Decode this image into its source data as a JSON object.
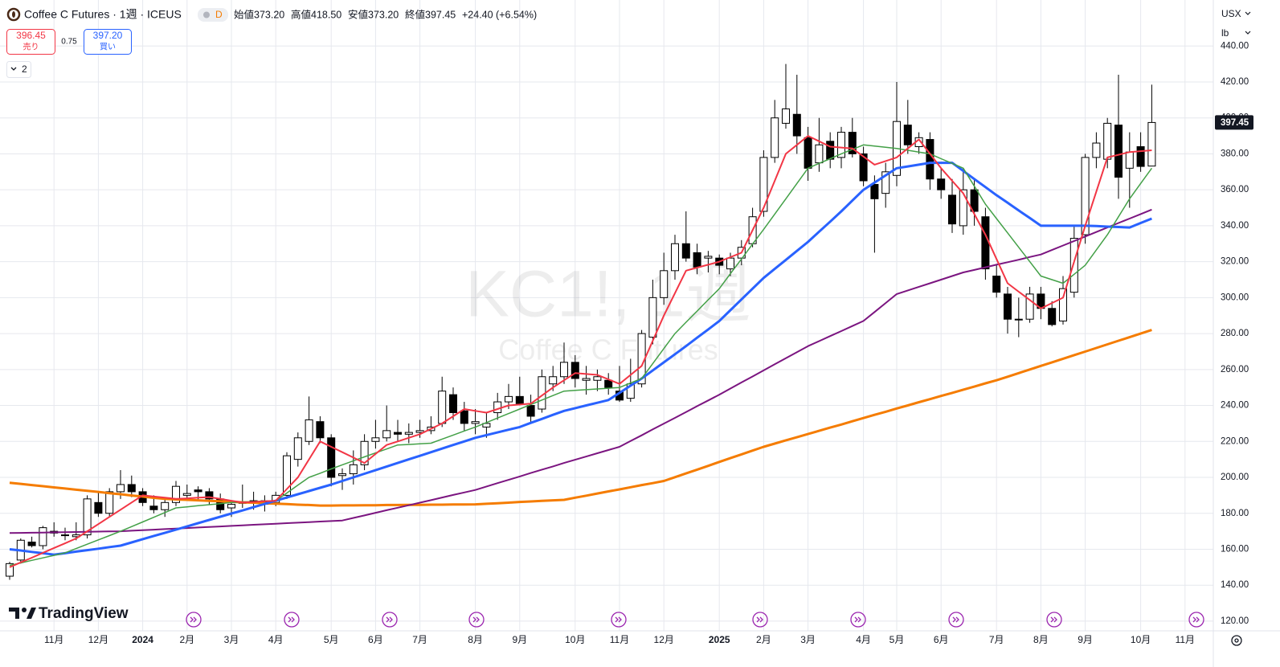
{
  "chart_data": {
    "type": "candlestick",
    "title": "Coffee C Futures · 1週 · ICEUS",
    "interval_badge": "D",
    "open_label": "始値373.20",
    "high_label": "高値418.50",
    "low_label": "安値373.20",
    "close_label": "終値397.45",
    "change_label": "+24.40 (+6.54%)",
    "currency": "USX",
    "unit": "lb",
    "watermark": "KC1!, 1週",
    "watermark_sub": "Coffee C Futures",
    "up_color": "#ffffff",
    "down_color": "#000000",
    "outline_color": "#000000",
    "grid": true,
    "ylim": [
      114.6,
      465.6
    ],
    "yticks": [
      {
        "value": 120,
        "label": "120.00"
      },
      {
        "value": 140,
        "label": "140.00"
      },
      {
        "value": 160,
        "label": "160.00"
      },
      {
        "value": 180,
        "label": "180.00"
      },
      {
        "value": 200,
        "label": "200.00"
      },
      {
        "value": 220,
        "label": "220.00"
      },
      {
        "value": 240,
        "label": "240.00"
      },
      {
        "value": 260,
        "label": "260.00"
      },
      {
        "value": 280,
        "label": "280.00"
      },
      {
        "value": 300,
        "label": "300.00"
      },
      {
        "value": 320,
        "label": "320.00"
      },
      {
        "value": 340,
        "label": "340.00"
      },
      {
        "value": 360,
        "label": "360.00"
      },
      {
        "value": 380,
        "label": "380.00"
      },
      {
        "value": 400,
        "label": "400.00"
      },
      {
        "value": 420,
        "label": "420.00"
      },
      {
        "value": 440,
        "label": "440.00"
      }
    ],
    "last_price": {
      "value": 397.45,
      "label": "397.45"
    },
    "categories": [
      null,
      null,
      null,
      null,
      "11月",
      null,
      null,
      null,
      "12月",
      null,
      null,
      null,
      "2024",
      null,
      null,
      null,
      "2月",
      null,
      null,
      null,
      "3月",
      null,
      null,
      null,
      "4月",
      null,
      null,
      null,
      null,
      "5月",
      null,
      null,
      null,
      "6月",
      null,
      null,
      null,
      "7月",
      null,
      null,
      null,
      null,
      "8月",
      null,
      null,
      null,
      "9月",
      null,
      null,
      null,
      null,
      "10月",
      null,
      null,
      null,
      "11月",
      null,
      null,
      null,
      "12月",
      null,
      null,
      null,
      null,
      "2025",
      null,
      null,
      null,
      "2月",
      null,
      null,
      null,
      "3月",
      null,
      null,
      null,
      null,
      "4月",
      null,
      null,
      "5月",
      null,
      null,
      null,
      "6月",
      null,
      null,
      null,
      null,
      "7月",
      null,
      null,
      null,
      "8月",
      null,
      null,
      null,
      "9月",
      null,
      null,
      null,
      null,
      "10月",
      null,
      null,
      null,
      "11月"
    ],
    "open": [
      145,
      154,
      164,
      162,
      170,
      168,
      167,
      168,
      186,
      180,
      192,
      196,
      192,
      184,
      182,
      186,
      190,
      193,
      192,
      188,
      183,
      186,
      186,
      187,
      186,
      190,
      210,
      220,
      231,
      222,
      201,
      202,
      207,
      220,
      222,
      225,
      224,
      225,
      226,
      230,
      246,
      237,
      230,
      228,
      236,
      242,
      245,
      240,
      238,
      252,
      256,
      264,
      254,
      254,
      254,
      248,
      244,
      252,
      278,
      300,
      315,
      330,
      325,
      322,
      322,
      316,
      322,
      330,
      348,
      378,
      397,
      402,
      389,
      375,
      387,
      378,
      392,
      380,
      363,
      358,
      368,
      396,
      384,
      388,
      366,
      357,
      340,
      360,
      345,
      312,
      302,
      288,
      288,
      302,
      294,
      287,
      303,
      335,
      378,
      377,
      396,
      372,
      384,
      373.2,
      null,
      null,
      null
    ],
    "high": [
      153,
      166,
      167,
      173,
      175,
      172,
      175,
      190,
      192,
      194,
      204,
      201,
      194,
      190,
      188,
      198,
      196,
      195,
      194,
      191,
      187,
      196,
      192,
      190,
      192,
      214,
      225,
      245,
      234,
      224,
      205,
      215,
      224,
      232,
      240,
      232,
      230,
      232,
      234,
      256,
      250,
      242,
      238,
      236,
      247,
      252,
      256,
      246,
      260,
      262,
      275,
      268,
      262,
      260,
      258,
      262,
      266,
      282,
      310,
      325,
      335,
      348,
      330,
      326,
      324,
      325,
      332,
      350,
      382,
      410,
      430,
      424,
      395,
      400,
      392,
      395,
      400,
      384,
      368,
      375,
      420,
      410,
      392,
      392,
      372,
      366,
      372,
      366,
      350,
      318,
      306,
      300,
      306,
      306,
      298,
      312,
      340,
      380,
      392,
      400,
      424,
      392,
      392,
      418.5,
      null,
      null,
      null
    ],
    "low": [
      143,
      152,
      161,
      160,
      167,
      165,
      165,
      166,
      178,
      178,
      188,
      189,
      184,
      180,
      178,
      184,
      187,
      187,
      185,
      180,
      178,
      183,
      182,
      181,
      184,
      188,
      206,
      218,
      219,
      195,
      193,
      196,
      204,
      216,
      220,
      220,
      219,
      222,
      224,
      228,
      232,
      226,
      224,
      222,
      232,
      238,
      240,
      230,
      236,
      248,
      252,
      250,
      246,
      248,
      246,
      242,
      242,
      250,
      274,
      296,
      310,
      320,
      313,
      314,
      313,
      312,
      318,
      328,
      345,
      375,
      394,
      380,
      365,
      370,
      372,
      372,
      378,
      362,
      325,
      350,
      362,
      380,
      380,
      360,
      355,
      336,
      335,
      340,
      310,
      300,
      280,
      278,
      286,
      288,
      284,
      285,
      300,
      330,
      372,
      372,
      355,
      350,
      370,
      373.2,
      null,
      null,
      null
    ],
    "close": [
      152,
      165,
      162,
      172,
      169,
      168,
      168,
      188,
      180,
      192,
      196,
      192,
      186,
      182,
      186,
      195,
      191,
      192,
      188,
      182,
      185,
      186,
      187,
      185,
      190,
      212,
      222,
      232,
      222,
      200,
      202,
      207,
      220,
      222,
      226,
      224,
      225,
      226,
      228,
      248,
      236,
      230,
      231,
      230,
      242,
      245,
      241,
      234,
      256,
      256,
      264,
      255,
      255,
      256,
      250,
      243,
      252,
      280,
      300,
      315,
      330,
      322,
      317,
      323,
      318,
      322,
      328,
      345,
      378,
      400,
      405,
      390,
      372,
      385,
      377,
      392,
      380,
      365,
      355,
      370,
      398,
      385,
      389,
      366,
      360,
      341,
      360,
      348,
      316,
      303,
      288,
      288,
      302,
      294,
      285,
      305,
      333,
      378,
      386,
      397,
      367,
      381,
      373,
      397.45,
      null,
      null,
      null
    ],
    "series": [
      {
        "color": "#f57c00",
        "width": 3,
        "values": [
          197,
          196.4,
          195.7,
          195.1,
          194.4,
          193.8,
          193.1,
          192.5,
          191.9,
          191.2,
          190.6,
          189.9,
          189.3,
          188.6,
          188,
          187.7,
          187.5,
          187.2,
          186.9,
          186.7,
          186.4,
          186.1,
          185.9,
          185.6,
          185.4,
          185.1,
          184.8,
          184.6,
          184.3,
          184.3,
          184.4,
          184.4,
          184.5,
          184.5,
          184.6,
          184.6,
          184.7,
          184.7,
          184.8,
          184.8,
          184.9,
          184.9,
          185,
          185.3,
          185.6,
          185.9,
          186.3,
          186.6,
          186.9,
          187.2,
          187.5,
          188.7,
          189.8,
          191,
          192.2,
          193.3,
          194.5,
          195.7,
          196.8,
          198,
          200.1,
          202.2,
          204.3,
          206.4,
          208.6,
          210.7,
          212.8,
          214.9,
          217,
          218.8,
          220.6,
          222.3,
          224.1,
          225.9,
          227.7,
          229.4,
          231.2,
          233,
          234.8,
          236.5,
          238.3,
          240,
          241.8,
          243.5,
          245.3,
          247,
          248.8,
          250.5,
          252.3,
          254,
          256,
          258,
          260,
          262,
          264,
          266,
          268,
          270,
          272,
          274,
          276,
          278,
          280,
          282,
          null,
          null,
          null
        ]
      },
      {
        "color": "#7b1580",
        "width": 2,
        "values": [
          169,
          169.1,
          169.2,
          169.3,
          169.4,
          169.5,
          169.6,
          169.7,
          169.8,
          169.9,
          170,
          170.3,
          170.6,
          170.9,
          171.2,
          171.5,
          171.8,
          172.1,
          172.4,
          172.7,
          173,
          173.3,
          173.6,
          173.9,
          174.2,
          174.5,
          174.8,
          175.1,
          175.4,
          175.7,
          176,
          177.4,
          178.8,
          180.3,
          181.7,
          183.1,
          184.5,
          185.9,
          187.3,
          188.8,
          190.2,
          191.6,
          193,
          194.9,
          196.8,
          198.6,
          200.5,
          202.4,
          204.3,
          206.1,
          208,
          209.8,
          211.6,
          213.4,
          215.2,
          217,
          220.2,
          223.4,
          226.7,
          229.9,
          233.1,
          236.3,
          239.6,
          242.8,
          246,
          249.4,
          252.8,
          256.1,
          259.5,
          262.9,
          266.3,
          269.6,
          273,
          275.8,
          278.6,
          281.4,
          284.2,
          287,
          292,
          297,
          302,
          304,
          306,
          308,
          310,
          312,
          314,
          315.4,
          316.9,
          318.3,
          319.7,
          321.1,
          322.6,
          324,
          326.5,
          329,
          331.5,
          334,
          336.5,
          339,
          341.5,
          344,
          346.5,
          349,
          null,
          null,
          null
        ]
      },
      {
        "color": "#2962ff",
        "width": 3,
        "values": [
          160,
          159.3,
          158.5,
          157.8,
          157,
          157.8,
          158.7,
          159.5,
          160.3,
          161.2,
          162,
          163.8,
          165.6,
          167.4,
          169.1,
          170.9,
          172.7,
          174.5,
          176.3,
          178.1,
          179.9,
          181.6,
          183.4,
          185.2,
          187,
          188.8,
          190.6,
          192.4,
          194.2,
          196,
          198,
          200,
          202,
          204,
          206,
          208,
          210,
          212,
          214,
          216,
          218,
          220,
          222,
          223.5,
          225,
          226.5,
          228,
          230.3,
          232.5,
          234.8,
          237,
          238.5,
          240,
          241.5,
          243,
          247,
          251,
          255,
          259.5,
          264,
          268.5,
          273,
          277.7,
          282.3,
          287,
          293,
          299,
          305,
          311,
          316,
          321,
          326,
          331,
          336.7,
          342.3,
          348,
          354,
          360,
          364,
          368,
          372,
          373,
          374,
          375,
          375,
          375,
          370.5,
          366,
          361.5,
          357,
          352.8,
          348.5,
          344.3,
          340,
          340,
          340,
          340,
          340,
          339.8,
          339.5,
          339.3,
          339,
          341.5,
          344,
          null,
          null,
          null
        ]
      },
      {
        "color": "#43a047",
        "width": 1.5,
        "values": [
          151,
          152.4,
          153.8,
          155.2,
          156.6,
          158,
          160.4,
          162.8,
          165.2,
          167.6,
          170,
          172.6,
          175.2,
          177.8,
          180.4,
          183,
          183.6,
          184.2,
          184.8,
          185.4,
          186,
          186.3,
          186.5,
          186.8,
          187,
          191.3,
          195.7,
          200,
          202.3,
          204.7,
          207,
          209.2,
          211.4,
          213.6,
          215.8,
          218,
          218.3,
          218.7,
          219,
          221.3,
          223.5,
          225.8,
          228,
          230.5,
          233,
          235.5,
          238,
          240.5,
          243,
          245.5,
          248,
          248.4,
          248.8,
          249.2,
          249.6,
          250,
          252.5,
          255,
          263.3,
          271.7,
          280,
          286.3,
          292.5,
          298.8,
          305,
          313.3,
          321.5,
          329.8,
          338,
          346.5,
          355,
          363.5,
          372,
          374.7,
          377.3,
          380,
          382.5,
          385,
          384.3,
          383.7,
          383,
          382,
          381,
          380,
          377.3,
          374.7,
          372,
          362,
          352,
          344,
          336,
          328,
          320,
          312,
          310,
          308,
          313,
          318,
          326.5,
          335,
          345,
          355,
          363.5,
          372,
          null,
          null,
          null
        ]
      },
      {
        "color": "#f23645",
        "width": 2,
        "values": [
          150,
          152.7,
          155.3,
          158,
          160.7,
          163.3,
          166,
          170,
          174,
          178,
          182,
          186,
          190,
          189.3,
          188.7,
          188,
          188.3,
          188.7,
          189,
          188,
          187,
          186,
          186.3,
          186.7,
          187,
          193.5,
          200,
          210,
          220,
          217,
          214,
          211,
          208,
          213,
          218,
          220,
          222,
          224,
          227,
          230,
          234,
          238,
          237,
          236,
          238,
          240,
          240.5,
          241,
          245.5,
          250,
          254,
          258,
          257.5,
          257,
          254.5,
          252,
          257,
          262,
          276,
          290,
          302.5,
          315,
          316.7,
          318.3,
          320,
          322.5,
          325,
          337.5,
          350,
          365,
          380,
          385,
          390,
          387,
          384,
          383.5,
          383,
          378.5,
          374,
          376,
          378,
          383,
          388,
          380,
          372,
          365,
          358,
          346.5,
          335,
          321.5,
          308,
          303.3,
          298.7,
          294,
          297,
          300,
          320,
          340,
          359,
          378,
          379.5,
          381,
          381.5,
          382,
          null,
          null,
          null
        ]
      }
    ]
  },
  "toolbar": {
    "sell_price": "396.45",
    "sell_label": "売り",
    "spread": "0.75",
    "buy_price": "397.20",
    "buy_label": "買い",
    "collapse_count": "2"
  },
  "brand": "TradingView"
}
